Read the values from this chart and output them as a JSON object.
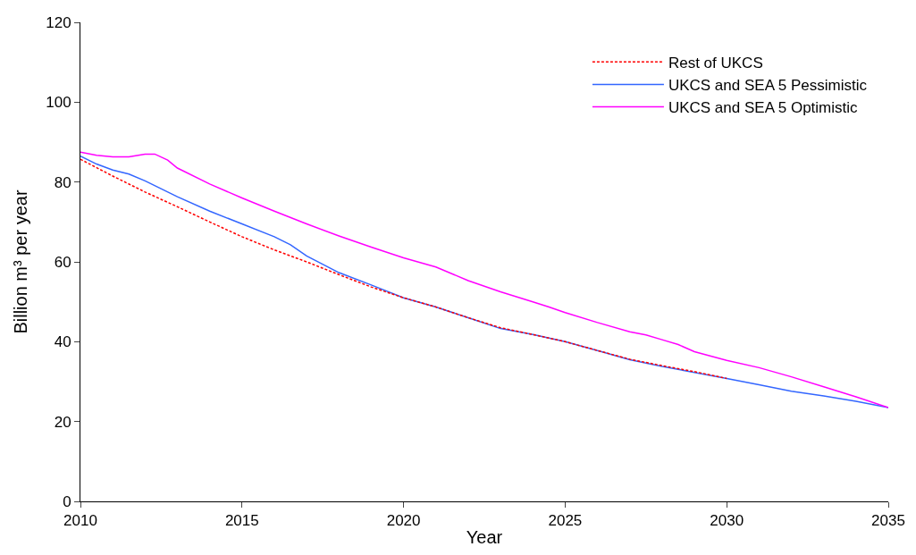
{
  "chart_data": {
    "type": "line",
    "xlabel": "Year",
    "ylabel": "Billion m³ per year",
    "xlim": [
      2010,
      2035
    ],
    "xticks": [
      2010,
      2015,
      2020,
      2025,
      2030,
      2035
    ],
    "ylim": [
      0,
      120
    ],
    "yticks": [
      0,
      20,
      40,
      60,
      80,
      100,
      120
    ],
    "legend": "top right",
    "marker": "none",
    "series": [
      {
        "name": "Rest of UKCS",
        "color": "#ff0000",
        "line_style": "dotted",
        "x": [
          2010,
          2011,
          2012,
          2013,
          2014,
          2015,
          2016,
          2017,
          2018,
          2019,
          2020,
          2021,
          2022,
          2023,
          2024,
          2025,
          2026,
          2027,
          2028,
          2029,
          2030
        ],
        "values": [
          85.7,
          81.5,
          77.5,
          73.8,
          70,
          66.3,
          63,
          60,
          56.8,
          53.7,
          51,
          48.7,
          46,
          43.5,
          41.8,
          40,
          37.8,
          35.6,
          34,
          32.5,
          30.8
        ]
      },
      {
        "name": "UKCS and SEA 5 Pessimistic",
        "color": "#3366ff",
        "line_style": "solid",
        "x": [
          2010,
          2010.5,
          2011,
          2011.5,
          2012,
          2013,
          2014,
          2015,
          2016,
          2016.5,
          2017,
          2018,
          2019,
          2020,
          2021,
          2022,
          2023,
          2024,
          2025,
          2026,
          2027,
          2028,
          2029,
          2030,
          2031,
          2032,
          2033,
          2034,
          2035
        ],
        "values": [
          86.5,
          84.5,
          83,
          82,
          80.3,
          76.3,
          72.7,
          69.5,
          66.3,
          64.3,
          61.5,
          57.3,
          54.2,
          51,
          48.7,
          46,
          43.3,
          41.8,
          40,
          37.8,
          35.5,
          33.8,
          32.3,
          30.8,
          29.2,
          27.6,
          26.4,
          25.1,
          23.5
        ]
      },
      {
        "name": "UKCS and SEA 5 Optimistic",
        "color": "#ff00ff",
        "line_style": "solid",
        "x": [
          2010,
          2010.5,
          2011,
          2011.5,
          2012,
          2012.3,
          2012.7,
          2013,
          2014,
          2015,
          2016,
          2017,
          2018,
          2019,
          2020,
          2021,
          2022,
          2023,
          2024,
          2024.5,
          2025,
          2026,
          2027,
          2027.5,
          2028,
          2028.5,
          2029,
          2030,
          2031,
          2032,
          2033,
          2034,
          2035
        ],
        "values": [
          87.5,
          86.7,
          86.3,
          86.3,
          87,
          87,
          85.5,
          83.5,
          79.5,
          76,
          72.7,
          69.5,
          66.5,
          63.7,
          61,
          58.7,
          55.3,
          52.5,
          50,
          48.7,
          47.3,
          44.8,
          42.5,
          41.7,
          40.5,
          39.3,
          37.5,
          35.3,
          33.5,
          31.2,
          28.7,
          26.2,
          23.5
        ]
      }
    ]
  }
}
